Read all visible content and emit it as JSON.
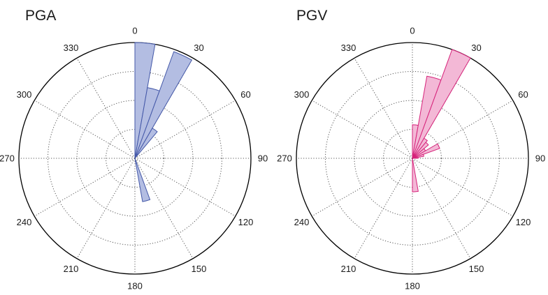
{
  "chart_data": [
    {
      "type": "rose",
      "title": "PGA",
      "angle_ticks": [
        "0",
        "30",
        "60",
        "90",
        "120",
        "150",
        "180",
        "210",
        "240",
        "270",
        "300",
        "330"
      ],
      "angle_tick_degrees": [
        0,
        30,
        60,
        90,
        120,
        150,
        180,
        210,
        240,
        270,
        300,
        330
      ],
      "bin_width_deg": 10,
      "radial_max": 1.0,
      "grid": "dotted",
      "fill_color": "#b3bde2",
      "stroke_color": "#4458a8",
      "bins": [
        {
          "start": 0,
          "end": 10,
          "value": 1.0
        },
        {
          "start": 10,
          "end": 20,
          "value": 0.62
        },
        {
          "start": 20,
          "end": 30,
          "value": 0.98
        },
        {
          "start": 30,
          "end": 40,
          "value": 0.3
        },
        {
          "start": 160,
          "end": 170,
          "value": 0.38
        }
      ]
    },
    {
      "type": "rose",
      "title": "PGV",
      "angle_ticks": [
        "0",
        "30",
        "60",
        "90",
        "120",
        "150",
        "180",
        "210",
        "240",
        "270",
        "300",
        "330"
      ],
      "angle_tick_degrees": [
        0,
        30,
        60,
        90,
        120,
        150,
        180,
        210,
        240,
        270,
        300,
        330
      ],
      "bin_width_deg": 10,
      "radial_max": 1.0,
      "grid": "dotted",
      "fill_color": "#f3b8d6",
      "stroke_color": "#d6237a",
      "bins": [
        {
          "start": 0,
          "end": 10,
          "value": 0.29
        },
        {
          "start": 10,
          "end": 20,
          "value": 0.72
        },
        {
          "start": 20,
          "end": 30,
          "value": 1.0
        },
        {
          "start": 30,
          "end": 40,
          "value": 0.2
        },
        {
          "start": 40,
          "end": 50,
          "value": 0.18
        },
        {
          "start": 50,
          "end": 60,
          "value": 0.13
        },
        {
          "start": 60,
          "end": 70,
          "value": 0.25
        },
        {
          "start": 70,
          "end": 80,
          "value": 0.1
        },
        {
          "start": 80,
          "end": 90,
          "value": 0.05
        },
        {
          "start": 170,
          "end": 180,
          "value": 0.29
        }
      ]
    }
  ]
}
